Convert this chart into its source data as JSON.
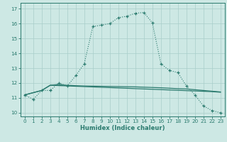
{
  "xlabel": "Humidex (Indice chaleur)",
  "bg_color": "#cde8e4",
  "line_color": "#2a7a6e",
  "grid_color": "#a8ceca",
  "xlim": [
    -0.5,
    23.5
  ],
  "ylim": [
    9.75,
    17.4
  ],
  "xticks": [
    0,
    1,
    2,
    3,
    4,
    5,
    6,
    7,
    8,
    9,
    10,
    11,
    12,
    13,
    14,
    15,
    16,
    17,
    18,
    19,
    20,
    21,
    22,
    23
  ],
  "yticks": [
    10,
    11,
    12,
    13,
    14,
    15,
    16,
    17
  ],
  "curve1_x": [
    0,
    1,
    2,
    3,
    4,
    5,
    6,
    7,
    8,
    9,
    10,
    11,
    12,
    13,
    14,
    15,
    16,
    17,
    18,
    19,
    20,
    21,
    22,
    23
  ],
  "curve1_y": [
    11.2,
    10.9,
    11.5,
    11.5,
    12.0,
    11.8,
    12.5,
    13.3,
    15.8,
    15.9,
    16.0,
    16.4,
    16.5,
    16.7,
    16.75,
    16.05,
    13.3,
    12.85,
    12.7,
    11.8,
    11.2,
    10.45,
    10.15,
    10.0
  ],
  "curve2_x": [
    0,
    2,
    3,
    4,
    5,
    6,
    7,
    8,
    9,
    10,
    11,
    12,
    13,
    14,
    15,
    16,
    17,
    18,
    19,
    20,
    21,
    22,
    23
  ],
  "curve2_y": [
    11.2,
    11.5,
    11.85,
    11.9,
    11.85,
    11.82,
    11.8,
    11.79,
    11.78,
    11.77,
    11.76,
    11.75,
    11.74,
    11.72,
    11.7,
    11.68,
    11.65,
    11.62,
    11.6,
    11.55,
    11.5,
    11.45,
    11.4
  ],
  "curve3_x": [
    0,
    2,
    3,
    22,
    23
  ],
  "curve3_y": [
    11.2,
    11.5,
    11.85,
    11.42,
    11.38
  ]
}
